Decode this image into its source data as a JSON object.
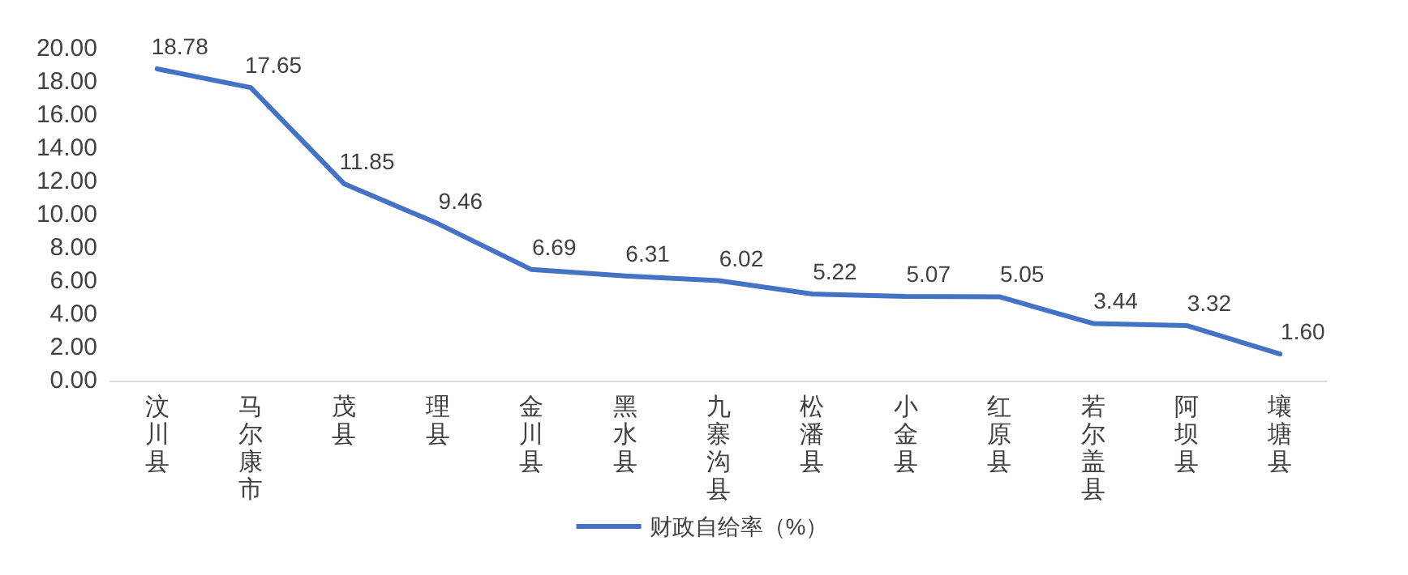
{
  "chart_data": {
    "type": "line",
    "categories": [
      "汶川县",
      "马尔康市",
      "茂县",
      "理县",
      "金川县",
      "黑水县",
      "九寨沟县",
      "松潘县",
      "小金县",
      "红原县",
      "若尔盖县",
      "阿坝县",
      "壤塘县"
    ],
    "series": [
      {
        "name": "财政自给率（%）",
        "color": "#4472c4",
        "values": [
          18.78,
          17.65,
          11.85,
          9.46,
          6.69,
          6.31,
          6.02,
          5.22,
          5.07,
          5.05,
          3.44,
          3.32,
          1.6
        ],
        "value_labels": [
          "18.78",
          "17.65",
          "11.85",
          "9.46",
          "6.69",
          "6.31",
          "6.02",
          "5.22",
          "5.07",
          "5.05",
          "3.44",
          "3.32",
          "1.60"
        ]
      }
    ],
    "ylim": [
      0,
      20
    ],
    "yticks": [
      {
        "value": 0,
        "label": "0.00"
      },
      {
        "value": 2,
        "label": "2.00"
      },
      {
        "value": 4,
        "label": "4.00"
      },
      {
        "value": 6,
        "label": "6.00"
      },
      {
        "value": 8,
        "label": "8.00"
      },
      {
        "value": 10,
        "label": "10.00"
      },
      {
        "value": 12,
        "label": "12.00"
      },
      {
        "value": 14,
        "label": "14.00"
      },
      {
        "value": 16,
        "label": "16.00"
      },
      {
        "value": 18,
        "label": "18.00"
      },
      {
        "value": 20,
        "label": "20.00"
      }
    ],
    "grid": false,
    "legend": "bottom",
    "marker": "none",
    "line_style": "solid"
  }
}
